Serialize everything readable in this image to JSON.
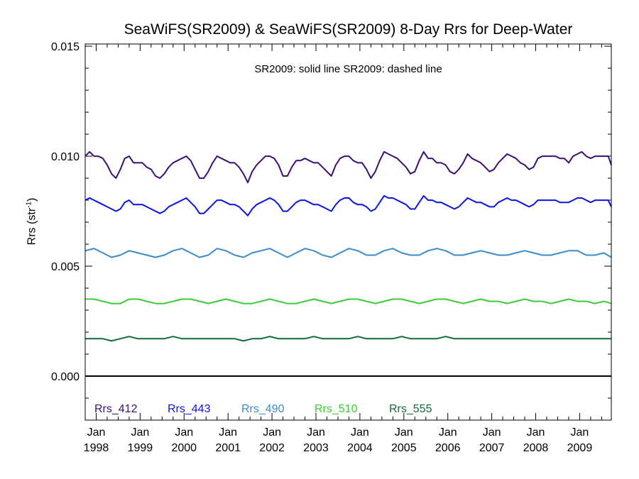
{
  "chart_data": {
    "type": "line",
    "title": "SeaWiFS(SR2009) & SeaWiFS(SR2009) 8-Day Rrs for Deep-Water",
    "annotation": "SR2009: solid line   SR2009: dashed line",
    "ylabel_text": "Rrs (str",
    "ylabel_sup": "-1",
    "ylabel_close": ")",
    "ylim": [
      -0.002,
      0.0151
    ],
    "xlim": [
      1997.75,
      2009.72
    ],
    "y_ticks": [
      {
        "value": 0.0,
        "label": "0.000"
      },
      {
        "value": 0.005,
        "label": "0.005"
      },
      {
        "value": 0.01,
        "label": "0.010"
      },
      {
        "value": 0.015,
        "label": "0.015"
      }
    ],
    "x_ticks": [
      {
        "value": 1998,
        "month": "Jan",
        "year": "1998"
      },
      {
        "value": 1999,
        "month": "Jan",
        "year": "1999"
      },
      {
        "value": 2000,
        "month": "Jan",
        "year": "2000"
      },
      {
        "value": 2001,
        "month": "Jan",
        "year": "2001"
      },
      {
        "value": 2002,
        "month": "Jan",
        "year": "2002"
      },
      {
        "value": 2003,
        "month": "Jan",
        "year": "2003"
      },
      {
        "value": 2004,
        "month": "Jan",
        "year": "2004"
      },
      {
        "value": 2005,
        "month": "Jan",
        "year": "2005"
      },
      {
        "value": 2006,
        "month": "Jan",
        "year": "2006"
      },
      {
        "value": 2007,
        "month": "Jan",
        "year": "2007"
      },
      {
        "value": 2008,
        "month": "Jan",
        "year": "2008"
      },
      {
        "value": 2009,
        "month": "Jan",
        "year": "2009"
      }
    ],
    "zero_line": 0.0,
    "series": [
      {
        "name": "Rrs_412",
        "color": "#3b0f73",
        "x": [
          1997.75,
          1997.85,
          1997.95,
          1998.05,
          1998.15,
          1998.25,
          1998.35,
          1998.45,
          1998.55,
          1998.65,
          1998.75,
          1998.85,
          1998.95,
          1999.05,
          1999.15,
          1999.25,
          1999.35,
          1999.45,
          1999.55,
          1999.65,
          1999.75,
          1999.85,
          1999.95,
          2000.05,
          2000.15,
          2000.25,
          2000.35,
          2000.45,
          2000.55,
          2000.65,
          2000.75,
          2000.85,
          2000.95,
          2001.05,
          2001.15,
          2001.25,
          2001.35,
          2001.45,
          2001.55,
          2001.65,
          2001.75,
          2001.85,
          2001.95,
          2002.05,
          2002.15,
          2002.25,
          2002.35,
          2002.45,
          2002.55,
          2002.65,
          2002.75,
          2002.85,
          2002.95,
          2003.05,
          2003.15,
          2003.25,
          2003.35,
          2003.45,
          2003.55,
          2003.65,
          2003.75,
          2003.85,
          2003.95,
          2004.05,
          2004.15,
          2004.25,
          2004.35,
          2004.45,
          2004.55,
          2004.65,
          2004.75,
          2004.85,
          2004.95,
          2005.05,
          2005.15,
          2005.25,
          2005.35,
          2005.45,
          2005.55,
          2005.65,
          2005.75,
          2005.85,
          2005.95,
          2006.05,
          2006.15,
          2006.25,
          2006.35,
          2006.45,
          2006.55,
          2006.65,
          2006.75,
          2006.85,
          2006.95,
          2007.05,
          2007.15,
          2007.25,
          2007.35,
          2007.45,
          2007.55,
          2007.65,
          2007.75,
          2007.85,
          2007.95,
          2008.05,
          2008.15,
          2008.25,
          2008.35,
          2008.45,
          2008.55,
          2008.65,
          2008.75,
          2008.85,
          2008.95,
          2009.05,
          2009.15,
          2009.25,
          2009.35,
          2009.45,
          2009.55,
          2009.65,
          2009.72
        ],
        "values": [
          0.01,
          0.0102,
          0.01,
          0.01,
          0.0099,
          0.0096,
          0.0092,
          0.009,
          0.0094,
          0.0099,
          0.01,
          0.0097,
          0.0097,
          0.0097,
          0.0095,
          0.0094,
          0.0091,
          0.009,
          0.0092,
          0.0095,
          0.0097,
          0.0098,
          0.0099,
          0.01,
          0.0098,
          0.0094,
          0.009,
          0.009,
          0.0093,
          0.0097,
          0.01,
          0.0099,
          0.0098,
          0.0097,
          0.0097,
          0.0095,
          0.0092,
          0.0088,
          0.0093,
          0.0096,
          0.0098,
          0.01,
          0.01,
          0.0099,
          0.0096,
          0.0091,
          0.0091,
          0.0095,
          0.0098,
          0.0098,
          0.0099,
          0.0098,
          0.0097,
          0.0097,
          0.0095,
          0.0093,
          0.0091,
          0.0096,
          0.0099,
          0.01,
          0.01,
          0.0098,
          0.0097,
          0.0097,
          0.0094,
          0.009,
          0.0093,
          0.0098,
          0.0102,
          0.0101,
          0.01,
          0.0099,
          0.0097,
          0.0095,
          0.0092,
          0.0093,
          0.0098,
          0.0102,
          0.0099,
          0.0099,
          0.0097,
          0.0097,
          0.0096,
          0.0093,
          0.0092,
          0.0094,
          0.0097,
          0.0101,
          0.0099,
          0.0098,
          0.0097,
          0.0095,
          0.0093,
          0.0094,
          0.0097,
          0.0099,
          0.0101,
          0.01,
          0.0099,
          0.0097,
          0.0096,
          0.0094,
          0.0095,
          0.0099,
          0.01,
          0.01,
          0.01,
          0.01,
          0.0099,
          0.0099,
          0.0097,
          0.01,
          0.0101,
          0.0102,
          0.01,
          0.0099,
          0.01,
          0.01,
          0.01,
          0.01,
          0.0096
        ]
      },
      {
        "name": "Rrs_443",
        "color": "#0a14e6",
        "x": [
          1997.75,
          1997.85,
          1997.95,
          1998.05,
          1998.15,
          1998.25,
          1998.35,
          1998.45,
          1998.55,
          1998.65,
          1998.75,
          1998.85,
          1998.95,
          1999.05,
          1999.15,
          1999.25,
          1999.35,
          1999.45,
          1999.55,
          1999.65,
          1999.75,
          1999.85,
          1999.95,
          2000.05,
          2000.15,
          2000.25,
          2000.35,
          2000.45,
          2000.55,
          2000.65,
          2000.75,
          2000.85,
          2000.95,
          2001.05,
          2001.15,
          2001.25,
          2001.35,
          2001.45,
          2001.55,
          2001.65,
          2001.75,
          2001.85,
          2001.95,
          2002.05,
          2002.15,
          2002.25,
          2002.35,
          2002.45,
          2002.55,
          2002.65,
          2002.75,
          2002.85,
          2002.95,
          2003.05,
          2003.15,
          2003.25,
          2003.35,
          2003.45,
          2003.55,
          2003.65,
          2003.75,
          2003.85,
          2003.95,
          2004.05,
          2004.15,
          2004.25,
          2004.35,
          2004.45,
          2004.55,
          2004.65,
          2004.75,
          2004.85,
          2004.95,
          2005.05,
          2005.15,
          2005.25,
          2005.35,
          2005.45,
          2005.55,
          2005.65,
          2005.75,
          2005.85,
          2005.95,
          2006.05,
          2006.15,
          2006.25,
          2006.35,
          2006.45,
          2006.55,
          2006.65,
          2006.75,
          2006.85,
          2006.95,
          2007.05,
          2007.15,
          2007.25,
          2007.35,
          2007.45,
          2007.55,
          2007.65,
          2007.75,
          2007.85,
          2007.95,
          2008.05,
          2008.15,
          2008.25,
          2008.35,
          2008.45,
          2008.55,
          2008.65,
          2008.75,
          2008.85,
          2008.95,
          2009.05,
          2009.15,
          2009.25,
          2009.35,
          2009.45,
          2009.55,
          2009.65,
          2009.72
        ],
        "values": [
          0.008,
          0.0081,
          0.008,
          0.0079,
          0.0078,
          0.0077,
          0.0076,
          0.0075,
          0.0076,
          0.0079,
          0.008,
          0.0078,
          0.0078,
          0.0078,
          0.0077,
          0.0076,
          0.0075,
          0.0074,
          0.0075,
          0.0077,
          0.0078,
          0.0079,
          0.008,
          0.0081,
          0.0079,
          0.0077,
          0.0074,
          0.0074,
          0.0076,
          0.0078,
          0.008,
          0.008,
          0.0079,
          0.0078,
          0.0078,
          0.0077,
          0.0075,
          0.0073,
          0.0076,
          0.0078,
          0.0079,
          0.008,
          0.0081,
          0.008,
          0.0078,
          0.0075,
          0.0075,
          0.0077,
          0.0079,
          0.008,
          0.008,
          0.0079,
          0.0078,
          0.0078,
          0.0077,
          0.0076,
          0.0075,
          0.0078,
          0.008,
          0.0081,
          0.0081,
          0.0079,
          0.0078,
          0.0078,
          0.0077,
          0.0075,
          0.0076,
          0.0079,
          0.0082,
          0.0081,
          0.0081,
          0.008,
          0.0079,
          0.0078,
          0.0076,
          0.0076,
          0.0079,
          0.0082,
          0.008,
          0.008,
          0.0079,
          0.0079,
          0.0078,
          0.0077,
          0.0076,
          0.0077,
          0.0079,
          0.0081,
          0.008,
          0.0079,
          0.0079,
          0.0078,
          0.0077,
          0.0077,
          0.0079,
          0.008,
          0.0081,
          0.008,
          0.008,
          0.0079,
          0.0078,
          0.0077,
          0.0078,
          0.008,
          0.008,
          0.008,
          0.008,
          0.008,
          0.0079,
          0.0079,
          0.0079,
          0.008,
          0.0081,
          0.0081,
          0.008,
          0.0079,
          0.008,
          0.008,
          0.008,
          0.008,
          0.0077
        ]
      },
      {
        "name": "Rrs_490",
        "color": "#3a8ccb",
        "x": [
          1997.75,
          1997.95,
          1998.15,
          1998.35,
          1998.55,
          1998.75,
          1998.95,
          1999.15,
          1999.35,
          1999.55,
          1999.75,
          1999.95,
          2000.15,
          2000.35,
          2000.55,
          2000.75,
          2000.95,
          2001.15,
          2001.35,
          2001.55,
          2001.75,
          2001.95,
          2002.15,
          2002.35,
          2002.55,
          2002.75,
          2002.95,
          2003.15,
          2003.35,
          2003.55,
          2003.75,
          2003.95,
          2004.15,
          2004.35,
          2004.55,
          2004.75,
          2004.95,
          2005.15,
          2005.35,
          2005.55,
          2005.75,
          2005.95,
          2006.15,
          2006.35,
          2006.55,
          2006.75,
          2006.95,
          2007.15,
          2007.35,
          2007.55,
          2007.75,
          2007.95,
          2008.15,
          2008.35,
          2008.55,
          2008.75,
          2008.95,
          2009.15,
          2009.35,
          2009.55,
          2009.72
        ],
        "values": [
          0.0057,
          0.0058,
          0.0056,
          0.0054,
          0.0055,
          0.0057,
          0.0056,
          0.0055,
          0.0054,
          0.0055,
          0.0057,
          0.0058,
          0.0056,
          0.0054,
          0.0055,
          0.0058,
          0.0057,
          0.0055,
          0.0054,
          0.0056,
          0.0057,
          0.0058,
          0.0056,
          0.0054,
          0.0056,
          0.0058,
          0.0057,
          0.0055,
          0.0054,
          0.0056,
          0.0058,
          0.0057,
          0.0055,
          0.0055,
          0.0057,
          0.0058,
          0.0056,
          0.0055,
          0.0055,
          0.0057,
          0.0058,
          0.0057,
          0.0055,
          0.0055,
          0.0056,
          0.0057,
          0.0056,
          0.0055,
          0.0055,
          0.0056,
          0.0057,
          0.0056,
          0.0055,
          0.0055,
          0.0056,
          0.0057,
          0.0057,
          0.0055,
          0.0055,
          0.0056,
          0.0054
        ]
      },
      {
        "name": "Rrs_510",
        "color": "#3ccc38",
        "x": [
          1997.75,
          1997.95,
          1998.15,
          1998.35,
          1998.55,
          1998.75,
          1998.95,
          1999.15,
          1999.35,
          1999.55,
          1999.75,
          1999.95,
          2000.15,
          2000.35,
          2000.55,
          2000.75,
          2000.95,
          2001.15,
          2001.35,
          2001.55,
          2001.75,
          2001.95,
          2002.15,
          2002.35,
          2002.55,
          2002.75,
          2002.95,
          2003.15,
          2003.35,
          2003.55,
          2003.75,
          2003.95,
          2004.15,
          2004.35,
          2004.55,
          2004.75,
          2004.95,
          2005.15,
          2005.35,
          2005.55,
          2005.75,
          2005.95,
          2006.15,
          2006.35,
          2006.55,
          2006.75,
          2006.95,
          2007.15,
          2007.35,
          2007.55,
          2007.75,
          2007.95,
          2008.15,
          2008.35,
          2008.55,
          2008.75,
          2008.95,
          2009.15,
          2009.35,
          2009.55,
          2009.72
        ],
        "values": [
          0.0035,
          0.0035,
          0.0034,
          0.0033,
          0.0033,
          0.0035,
          0.0035,
          0.0034,
          0.0033,
          0.0033,
          0.0034,
          0.0035,
          0.0035,
          0.0034,
          0.0033,
          0.0034,
          0.0035,
          0.0034,
          0.0033,
          0.0033,
          0.0034,
          0.0035,
          0.0034,
          0.0033,
          0.0033,
          0.0034,
          0.0035,
          0.0034,
          0.0033,
          0.0034,
          0.0035,
          0.0035,
          0.0034,
          0.0033,
          0.0034,
          0.0035,
          0.0035,
          0.0034,
          0.0033,
          0.0034,
          0.0035,
          0.0035,
          0.0034,
          0.0033,
          0.0034,
          0.0035,
          0.0034,
          0.0034,
          0.0033,
          0.0034,
          0.0035,
          0.0034,
          0.0034,
          0.0033,
          0.0034,
          0.0035,
          0.0034,
          0.0034,
          0.0033,
          0.0034,
          0.0033
        ]
      },
      {
        "name": "Rrs_555",
        "color": "#0e6b3a",
        "x": [
          1997.75,
          1997.95,
          1998.15,
          1998.35,
          1998.55,
          1998.75,
          1998.95,
          1999.15,
          1999.35,
          1999.55,
          1999.75,
          1999.95,
          2000.15,
          2000.35,
          2000.55,
          2000.75,
          2000.95,
          2001.15,
          2001.35,
          2001.55,
          2001.75,
          2001.95,
          2002.15,
          2002.35,
          2002.55,
          2002.75,
          2002.95,
          2003.15,
          2003.35,
          2003.55,
          2003.75,
          2003.95,
          2004.15,
          2004.35,
          2004.55,
          2004.75,
          2004.95,
          2005.15,
          2005.35,
          2005.55,
          2005.75,
          2005.95,
          2006.15,
          2006.35,
          2006.55,
          2006.75,
          2006.95,
          2007.15,
          2007.35,
          2007.55,
          2007.75,
          2007.95,
          2008.15,
          2008.35,
          2008.55,
          2008.75,
          2008.95,
          2009.15,
          2009.35,
          2009.55,
          2009.72
        ],
        "values": [
          0.0017,
          0.0017,
          0.0017,
          0.0016,
          0.0017,
          0.0018,
          0.0017,
          0.0017,
          0.0017,
          0.0017,
          0.0018,
          0.0017,
          0.0017,
          0.0017,
          0.0017,
          0.0017,
          0.0017,
          0.0017,
          0.0016,
          0.0017,
          0.0017,
          0.0018,
          0.0017,
          0.0017,
          0.0017,
          0.0017,
          0.0018,
          0.0017,
          0.0017,
          0.0017,
          0.0017,
          0.0018,
          0.0017,
          0.0017,
          0.0017,
          0.0017,
          0.0018,
          0.0017,
          0.0017,
          0.0017,
          0.0017,
          0.0018,
          0.0017,
          0.0017,
          0.0017,
          0.0017,
          0.0017,
          0.0017,
          0.0017,
          0.0017,
          0.0017,
          0.0017,
          0.0017,
          0.0017,
          0.0017,
          0.0017,
          0.0017,
          0.0017,
          0.0017,
          0.0017,
          0.0017
        ]
      }
    ]
  }
}
